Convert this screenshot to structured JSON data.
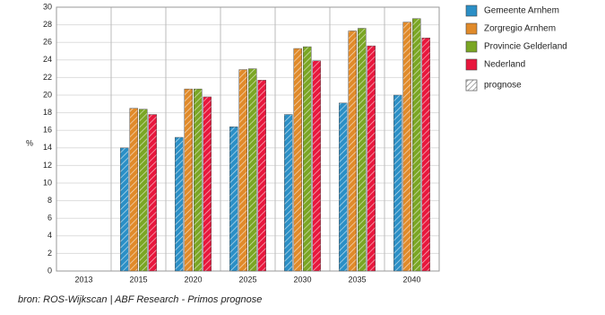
{
  "chart_data": {
    "type": "bar",
    "y_label": "%",
    "categories": [
      "2013",
      "2015",
      "2020",
      "2025",
      "2030",
      "2035",
      "2040"
    ],
    "series": [
      {
        "name": "Gemeente Arnhem",
        "color": "#2b8fc6",
        "values": [
          null,
          14.0,
          15.2,
          16.4,
          17.8,
          19.1,
          20.0
        ]
      },
      {
        "name": "Zorgregio Arnhem",
        "color": "#e08a2a",
        "values": [
          null,
          18.5,
          20.7,
          22.9,
          25.3,
          27.3,
          28.3
        ]
      },
      {
        "name": "Provincie Gelderland",
        "color": "#7aa624",
        "values": [
          null,
          18.4,
          20.7,
          23.0,
          25.5,
          27.6,
          28.7
        ]
      },
      {
        "name": "Nederland",
        "color": "#e8173d",
        "values": [
          null,
          17.8,
          19.8,
          21.7,
          23.9,
          25.6,
          26.5
        ]
      }
    ],
    "hatch_label": "prognose",
    "ylim": [
      0,
      30
    ],
    "yticks": [
      0,
      2,
      4,
      6,
      8,
      10,
      12,
      14,
      16,
      18,
      20,
      22,
      24,
      26,
      28,
      30
    ],
    "grid": true,
    "source": "bron: ROS-Wijkscan | ABF Research - Primos prognose"
  }
}
